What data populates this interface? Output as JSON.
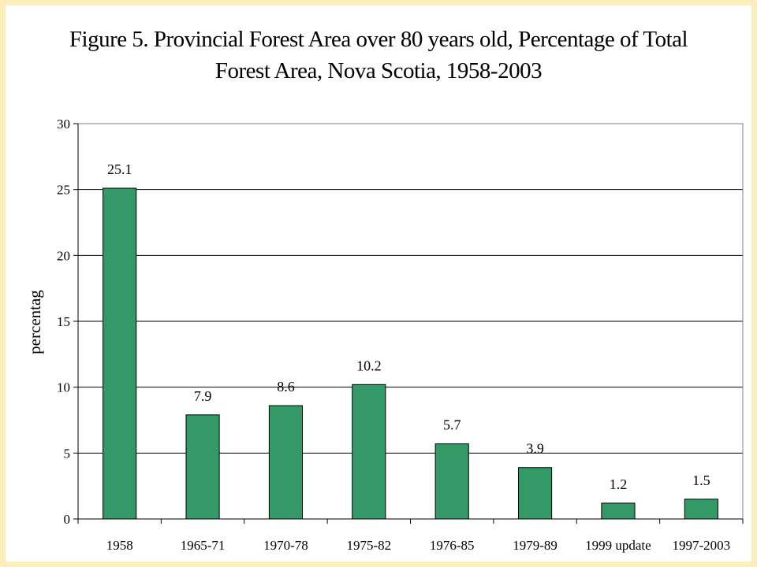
{
  "chart_data": {
    "type": "bar",
    "title_lines": [
      "Figure 5. Provincial Forest Area over 80 years old, Percentage of Total",
      "Forest Area, Nova Scotia, 1958-2003"
    ],
    "xlabel": "",
    "ylabel": "percentag",
    "categories": [
      "1958",
      "1965-71",
      "1970-78",
      "1975-82",
      "1976-85",
      "1979-89",
      "1999 update",
      "1997-2003"
    ],
    "values": [
      25.1,
      7.9,
      8.6,
      10.2,
      5.7,
      3.9,
      1.2,
      1.5
    ],
    "data_labels": [
      "25.1",
      "7.9",
      "8.6",
      "10.2",
      "5.7",
      "3.9",
      "1.2",
      "1.5"
    ],
    "ylim": [
      0,
      30
    ],
    "yticks": [
      "0",
      "5",
      "10",
      "15",
      "20",
      "25",
      "30"
    ],
    "grid": "horizontal",
    "legend": "none",
    "bar_color": "#339966",
    "border_color": "#fbeebb"
  }
}
